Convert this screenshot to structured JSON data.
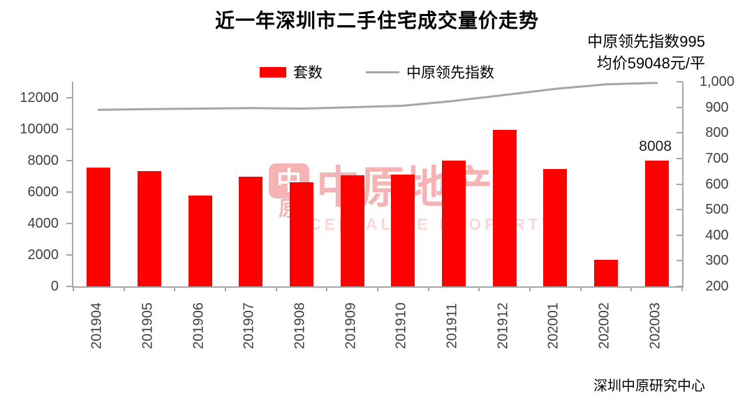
{
  "title": "近一年深圳市二手住宅成交量价走势",
  "annotation": {
    "line1": "中原领先指数995",
    "line2": "均价59048元/平"
  },
  "legend": {
    "bar_label": "套数",
    "line_label": "中原领先指数"
  },
  "footer": "深圳中原研究中心",
  "watermark": {
    "seal_top": "中",
    "seal_bottom": "原",
    "text": "中原地产",
    "subtext": "CENTALINE PROPERTY"
  },
  "colors": {
    "bar": "#ff0000",
    "line": "#a6a6a6",
    "axis": "#a6a6a6",
    "label_text": "#404040"
  },
  "chart_data": {
    "type": "bar",
    "subtype": "combo bar+line, dual axis",
    "title": "近一年深圳市二手住宅成交量价走势",
    "categories": [
      "201904",
      "201905",
      "201906",
      "201907",
      "201908",
      "201909",
      "201910",
      "201911",
      "201912",
      "202001",
      "202002",
      "202003"
    ],
    "series": [
      {
        "name": "套数",
        "type": "bar",
        "axis": "left",
        "color": "#ff0000",
        "values": [
          7550,
          7330,
          5780,
          6960,
          6620,
          7040,
          7080,
          8000,
          9960,
          7450,
          1670,
          8008
        ]
      },
      {
        "name": "中原领先指数",
        "type": "line",
        "axis": "right",
        "color": "#a6a6a6",
        "values": [
          890,
          893,
          895,
          897,
          895,
          900,
          906,
          925,
          948,
          972,
          990,
          995
        ]
      }
    ],
    "left_axis": {
      "min": 0,
      "max": 12000,
      "plot_top_value": 13000,
      "ticks": [
        0,
        2000,
        4000,
        6000,
        8000,
        10000,
        12000
      ],
      "tick_labels": [
        "0",
        "2000",
        "4000",
        "6000",
        "8000",
        "10000",
        "12000"
      ]
    },
    "right_axis": {
      "min": 200,
      "max": 1000,
      "ticks": [
        200,
        300,
        400,
        500,
        600,
        700,
        800,
        900,
        1000
      ],
      "tick_labels": [
        "200",
        "300",
        "400",
        "500",
        "600",
        "700",
        "800",
        "900",
        "1,000"
      ]
    },
    "data_label": {
      "series": "套数",
      "category": "202003",
      "text": "8008"
    },
    "grid": false,
    "legend_position": "top"
  }
}
